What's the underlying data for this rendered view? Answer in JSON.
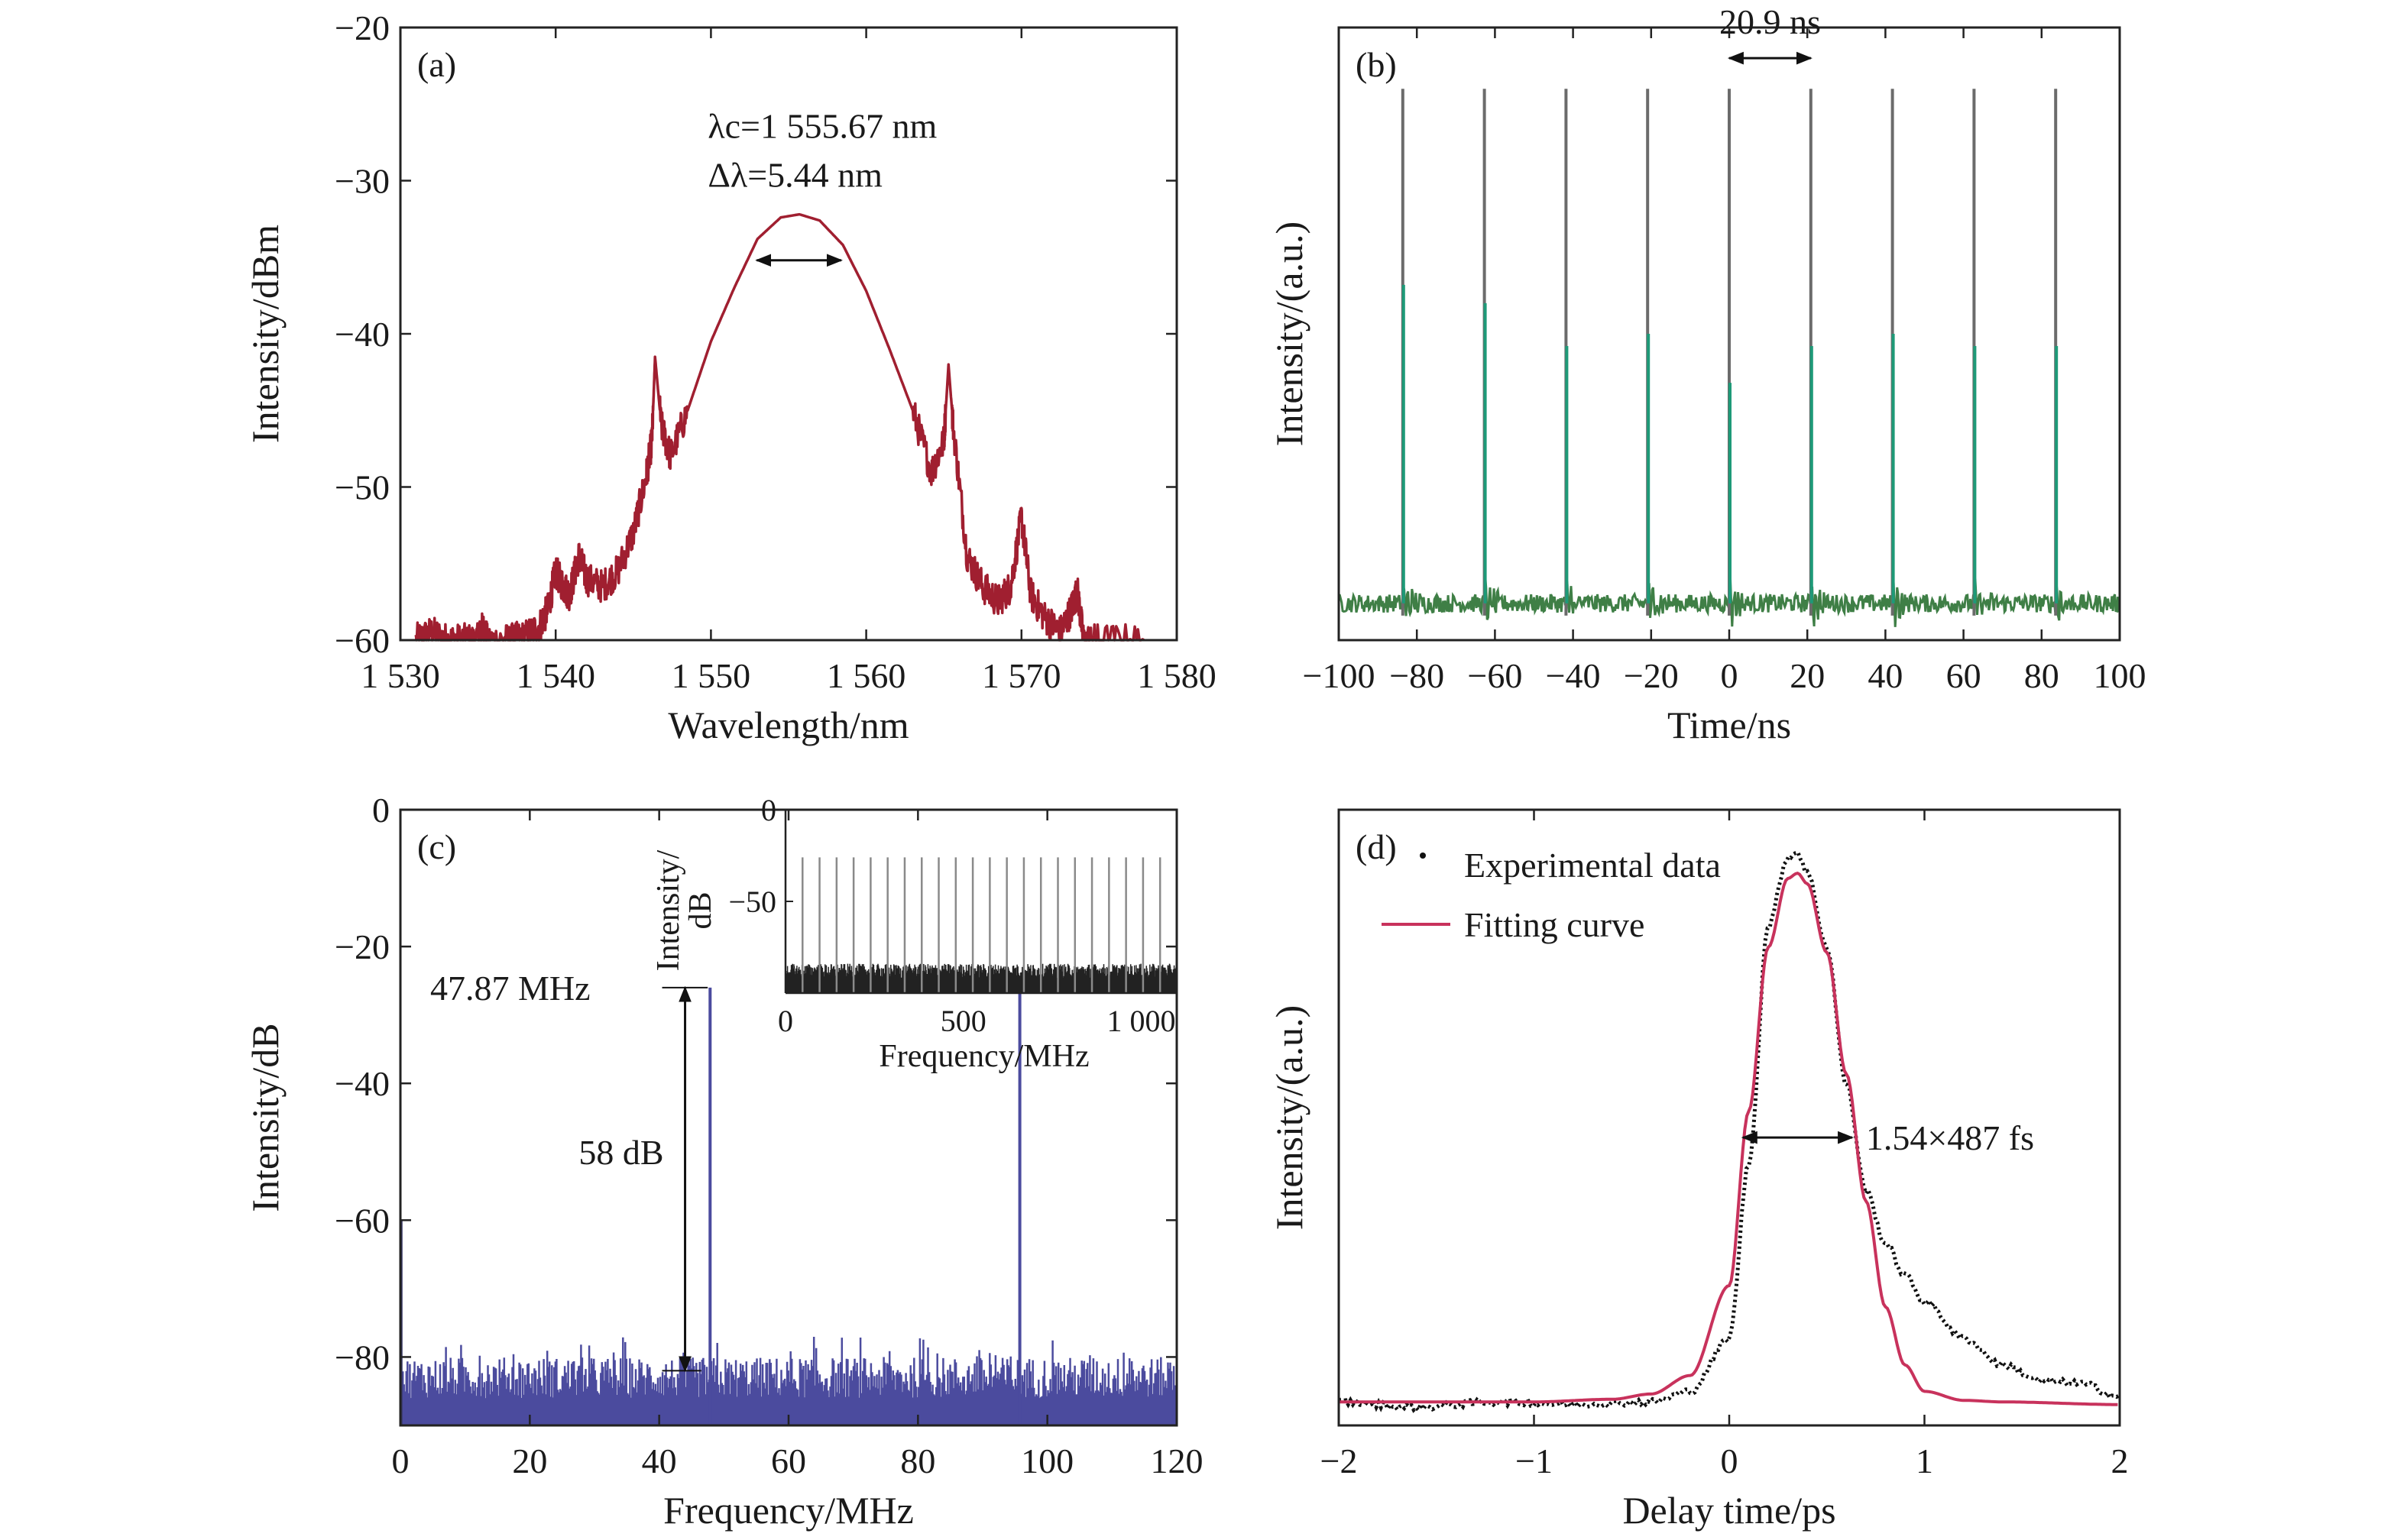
{
  "colors": {
    "spectrum": "#a01f30",
    "pulse_train_tall": "#6b6b6b",
    "pulse_train_short": "#1e9a78",
    "pulse_train_noise": "#3f7f46",
    "rf_noise": "#4b4b9e",
    "rf_peak": "#3a3a6a",
    "autocorr_data": "#111111",
    "fit_curve": "#c8325c",
    "axis": "#222222"
  },
  "chart_data": [
    {
      "panel": "(a)",
      "type": "line",
      "xlabel": "Wavelength/nm",
      "ylabel": "Intensity/dBm",
      "xlim": [
        1530,
        1580
      ],
      "ylim": [
        -60,
        -20
      ],
      "xticks": [
        1530,
        1540,
        1550,
        1560,
        1570,
        1580
      ],
      "xtick_labels": [
        "1 530",
        "1 540",
        "1 550",
        "1 560",
        "1 570",
        "1 580"
      ],
      "yticks": [
        -60,
        -50,
        -40,
        -30,
        -20
      ],
      "ytick_labels": [
        "−60",
        "−50",
        "−40",
        "−30",
        "−20"
      ],
      "center_wavelength_nm": 1555.67,
      "bandwidth_nm": 5.44,
      "annotation_lines": [
        "λc=1 555.67 nm",
        "Δλ=5.44 nm"
      ],
      "series": [
        {
          "x": [
            1531,
            1532,
            1533,
            1534,
            1535,
            1535.3,
            1535.6,
            1537,
            1538,
            1539,
            1539.5,
            1540,
            1540.5,
            1540.9,
            1541.5,
            1542,
            1543,
            1544,
            1545,
            1545.8,
            1546.2,
            1546.4,
            1546.8,
            1547.4,
            1548.5,
            1550,
            1551.5,
            1553,
            1554.5,
            1555.7,
            1557,
            1558.5,
            1560,
            1561.5,
            1563,
            1564.2,
            1565,
            1565.3,
            1565.6,
            1566.5,
            1567.5,
            1568.5,
            1569.3,
            1570,
            1570.6,
            1571.5,
            1572.5,
            1573.2,
            1573.6,
            1574,
            1575,
            1578
          ],
          "y": [
            -60,
            -59.5,
            -60,
            -60,
            -60,
            -59.2,
            -60,
            -60,
            -59.8,
            -59,
            -58,
            -55.5,
            -56.5,
            -57,
            -54.5,
            -56,
            -56.5,
            -55.5,
            -53,
            -49.5,
            -47,
            -41.5,
            -46,
            -48,
            -45,
            -40.5,
            -37,
            -33.8,
            -32.4,
            -32.2,
            -32.6,
            -34.2,
            -37.2,
            -41,
            -45,
            -49,
            -47,
            -42,
            -46,
            -54.5,
            -56.5,
            -57.5,
            -56.5,
            -52,
            -57,
            -58.5,
            -59.5,
            -58,
            -56.8,
            -60,
            -60,
            -60
          ]
        }
      ]
    },
    {
      "panel": "(b)",
      "type": "line",
      "xlabel": "Time/ns",
      "ylabel": "Intensity/(a.u.)",
      "xlim": [
        -100,
        100
      ],
      "ylim": [
        0,
        1
      ],
      "xticks": [
        -100,
        -80,
        -60,
        -40,
        -20,
        0,
        20,
        40,
        60,
        80,
        100
      ],
      "xtick_labels": [
        "−100",
        "−80",
        "−60",
        "−40",
        "−20",
        "0",
        "20",
        "40",
        "60",
        "80",
        "100"
      ],
      "pulse_period_ns": 20.9,
      "annotation": "20.9 ns",
      "pulse_times_ns": [
        -83.6,
        -62.7,
        -41.8,
        -20.9,
        0,
        20.9,
        41.8,
        62.7,
        83.6
      ],
      "pulse_heights": [
        0.9,
        0.9,
        0.9,
        0.9,
        0.9,
        0.9,
        0.9,
        0.9,
        0.9
      ],
      "secondary_heights": [
        0.58,
        0.55,
        0.48,
        0.5,
        0.42,
        0.48,
        0.5,
        0.48,
        0.48
      ],
      "baseline": 0.06
    },
    {
      "panel": "(c)",
      "type": "line",
      "xlabel": "Frequency/MHz",
      "ylabel": "Intensity/dB",
      "xlim": [
        0,
        120
      ],
      "ylim": [
        -90,
        0
      ],
      "xticks": [
        0,
        20,
        40,
        60,
        80,
        100,
        120
      ],
      "yticks": [
        0,
        -20,
        -40,
        -60,
        -80
      ],
      "ytick_labels": [
        "0",
        "−20",
        "−40",
        "−60",
        "−80"
      ],
      "fundamental_MHz": 47.87,
      "peaks": [
        {
          "x": 47.87,
          "y": -26
        },
        {
          "x": 95.74,
          "y": -26
        }
      ],
      "noise_floor_dB": -85,
      "snr_dB": 58,
      "annotations": [
        "47.87 MHz",
        "58 dB"
      ],
      "inset": {
        "xlabel": "Frequency/MHz",
        "ylabel_lines": [
          "Intensity/",
          "dB"
        ],
        "xlim": [
          0,
          1100
        ],
        "ylim": [
          -100,
          0
        ],
        "xticks": [
          0,
          500,
          1000
        ],
        "xtick_labels": [
          "0",
          "500",
          "1 000"
        ],
        "yticks": [
          0,
          -50
        ],
        "ytick_labels": [
          "0",
          "−50"
        ],
        "peak_spacing_MHz": 47.87,
        "peak_level_dB": -26,
        "noise_floor_dB": -92
      }
    },
    {
      "panel": "(d)",
      "type": "line",
      "xlabel": "Delay time/ps",
      "ylabel": "Intensity/(a.u.)",
      "xlim": [
        -2,
        2
      ],
      "ylim": [
        0,
        1
      ],
      "xticks": [
        -2,
        -1,
        0,
        1,
        2
      ],
      "xtick_labels": [
        "−2",
        "−1",
        "0",
        "1",
        "2"
      ],
      "legend": [
        "Experimental data",
        "Fitting curve"
      ],
      "legend_placement": "top-left",
      "annotation": "1.54×487 fs",
      "fwhm_fs": 750,
      "series": [
        {
          "name": "Experimental data",
          "x": [
            -2,
            -1.6,
            -1.2,
            -0.8,
            -0.4,
            -0.2,
            0,
            0.1,
            0.2,
            0.3,
            0.35,
            0.4,
            0.5,
            0.6,
            0.7,
            0.8,
            0.9,
            1.0,
            1.2,
            1.4,
            1.6,
            1.8,
            2.0
          ],
          "y": [
            0.0,
            -0.01,
            0.0,
            -0.005,
            0.0,
            0.02,
            0.12,
            0.45,
            0.9,
            1.03,
            1.04,
            1.0,
            0.86,
            0.6,
            0.4,
            0.3,
            0.24,
            0.19,
            0.12,
            0.07,
            0.04,
            0.035,
            0.01
          ]
        },
        {
          "name": "Fitting curve",
          "x": [
            -2,
            -1.0,
            -0.6,
            -0.4,
            -0.2,
            0,
            0.1,
            0.2,
            0.3,
            0.35,
            0.4,
            0.5,
            0.6,
            0.7,
            0.8,
            0.9,
            1.0,
            1.2,
            1.4,
            2.0
          ],
          "y": [
            0.0,
            0.0,
            0.005,
            0.015,
            0.05,
            0.22,
            0.55,
            0.86,
            0.99,
            1.0,
            0.98,
            0.85,
            0.62,
            0.38,
            0.18,
            0.07,
            0.02,
            0.003,
            0.0,
            -0.005
          ]
        }
      ]
    }
  ]
}
